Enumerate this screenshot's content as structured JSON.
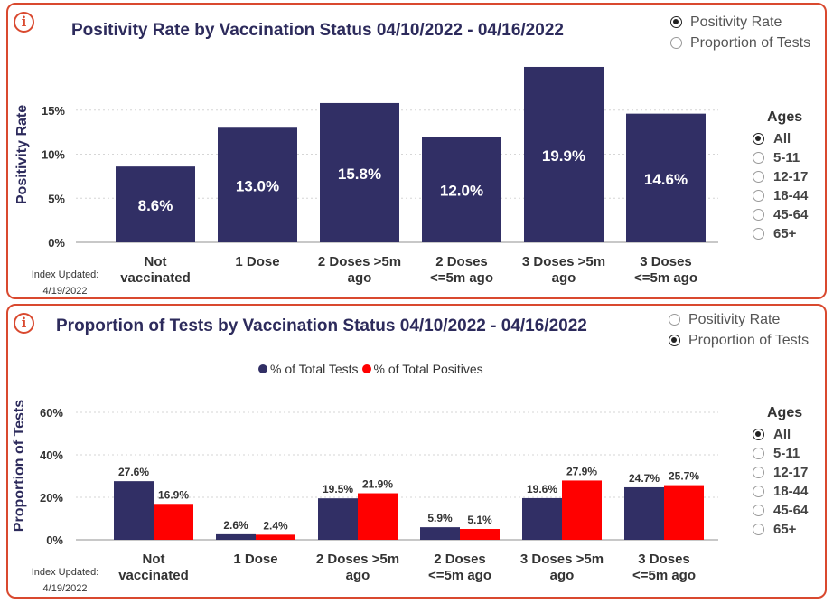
{
  "colors": {
    "navy": "#312f65",
    "red": "#ff0000",
    "border": "#d9492f",
    "grid": "#d6d6d6"
  },
  "panel1": {
    "icon": "info-icon",
    "title": "Positivity Rate by Vaccination Status 04/10/2022 - 04/16/2022",
    "toggle": {
      "options": [
        "Positivity Rate",
        "Proportion of Tests"
      ],
      "selected": 0
    },
    "ages": {
      "header": "Ages",
      "options": [
        "All",
        "5-11",
        "12-17",
        "18-44",
        "45-64",
        "65+"
      ],
      "selected": 0
    },
    "index_updated": {
      "label": "Index Updated:",
      "date": "4/19/2022"
    }
  },
  "panel2": {
    "icon": "info-icon",
    "title": "Proportion of Tests by Vaccination Status 04/10/2022 - 04/16/2022",
    "toggle": {
      "options": [
        "Positivity Rate",
        "Proportion of Tests"
      ],
      "selected": 1
    },
    "ages": {
      "header": "Ages",
      "options": [
        "All",
        "5-11",
        "12-17",
        "18-44",
        "45-64",
        "65+"
      ],
      "selected": 0
    },
    "index_updated": {
      "label": "Index Updated:",
      "date": "4/19/2022"
    }
  },
  "chart_data": [
    {
      "type": "bar",
      "title": "Positivity Rate by Vaccination Status 04/10/2022 - 04/16/2022",
      "categories": [
        [
          "Not",
          "vaccinated"
        ],
        [
          "1 Dose"
        ],
        [
          "2 Doses >5m",
          "ago"
        ],
        [
          "2 Doses",
          "<=5m ago"
        ],
        [
          "3 Doses >5m",
          "ago"
        ],
        [
          "3 Doses",
          "<=5m ago"
        ]
      ],
      "values": [
        8.6,
        13.0,
        15.8,
        12.0,
        19.9,
        14.6
      ],
      "labels": [
        "8.6%",
        "13.0%",
        "15.8%",
        "12.0%",
        "19.9%",
        "14.6%"
      ],
      "ylabel": "Positivity Rate",
      "ylim": [
        0,
        20
      ],
      "yticks": [
        0,
        5,
        10,
        15
      ],
      "ytick_labels": [
        "0%",
        "5%",
        "10%",
        "15%"
      ],
      "grid": true
    },
    {
      "type": "bar",
      "title": "Proportion of Tests by Vaccination Status 04/10/2022 - 04/16/2022",
      "categories": [
        [
          "Not",
          "vaccinated"
        ],
        [
          "1 Dose"
        ],
        [
          "2 Doses >5m",
          "ago"
        ],
        [
          "2 Doses",
          "<=5m ago"
        ],
        [
          "3 Doses >5m",
          "ago"
        ],
        [
          "3 Doses",
          "<=5m ago"
        ]
      ],
      "series": [
        {
          "name": "% of Total Tests",
          "values": [
            27.6,
            2.6,
            19.5,
            5.9,
            19.6,
            24.7
          ],
          "labels": [
            "27.6%",
            "2.6%",
            "19.5%",
            "5.9%",
            "19.6%",
            "24.7%"
          ]
        },
        {
          "name": "% of Total Positives",
          "values": [
            16.9,
            2.4,
            21.9,
            5.1,
            27.9,
            25.7
          ],
          "labels": [
            "16.9%",
            "2.4%",
            "21.9%",
            "5.1%",
            "27.9%",
            "25.7%"
          ]
        }
      ],
      "ylabel": "Proportion of Tests",
      "ylim": [
        0,
        60
      ],
      "yticks": [
        0,
        20,
        40,
        60
      ],
      "ytick_labels": [
        "0%",
        "20%",
        "40%",
        "60%"
      ],
      "legend": "top-center",
      "grid": true
    }
  ]
}
